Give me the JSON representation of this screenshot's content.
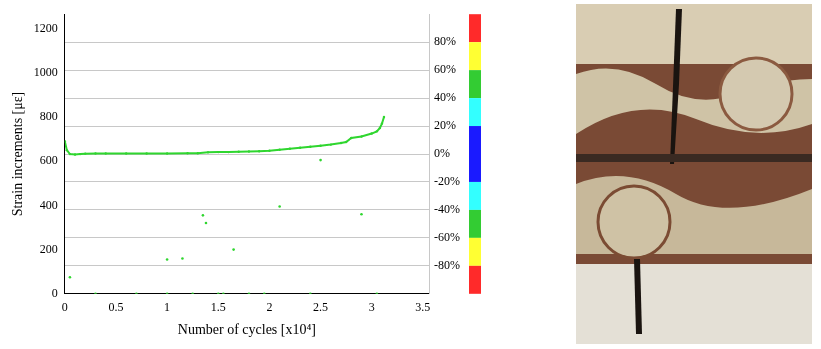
{
  "chart_data": {
    "type": "scatter",
    "x_label": "Number of cycles [x10⁴]",
    "y_label": "Strain increments [με]",
    "xlim": [
      0,
      3.56
    ],
    "xticks": [
      0,
      0.5,
      1,
      1.5,
      2,
      2.5,
      3,
      3.5
    ],
    "ylim": [
      0,
      1265
    ],
    "yticks": [
      0,
      200,
      400,
      600,
      800,
      1000,
      1200
    ],
    "y2lim": [
      -100,
      100
    ],
    "y2ticks": [
      {
        "value": -80,
        "label": "-80%"
      },
      {
        "value": -60,
        "label": "-60%"
      },
      {
        "value": -40,
        "label": "-40%"
      },
      {
        "value": -20,
        "label": "-20%"
      },
      {
        "value": 0,
        "label": "0%"
      },
      {
        "value": 20,
        "label": "20%"
      },
      {
        "value": 40,
        "label": "40%"
      },
      {
        "value": 60,
        "label": "60%"
      },
      {
        "value": 80,
        "label": "80%"
      }
    ],
    "grid": true,
    "series": [
      {
        "color": "#2fd62f",
        "marker": "circle",
        "line_style": "solid",
        "x": [
          0,
          0.02,
          0.05,
          0.1,
          0.15,
          0.2,
          0.3,
          0.4,
          0.6,
          0.8,
          1.0,
          1.2,
          1.3,
          1.4,
          1.5,
          1.6,
          1.7,
          1.8,
          1.9,
          2.0,
          2.1,
          2.2,
          2.3,
          2.4,
          2.5,
          2.6,
          2.7,
          2.75,
          2.8,
          2.9,
          3.0,
          3.05,
          3.08,
          3.1,
          3.12
        ],
        "values": [
          690,
          650,
          632,
          630,
          632,
          634,
          635,
          635,
          635,
          635,
          635,
          636,
          636,
          640,
          641,
          641,
          643,
          644,
          645,
          647,
          652,
          656,
          661,
          665,
          670,
          675,
          682,
          687,
          705,
          712,
          725,
          735,
          750,
          770,
          800
        ]
      },
      {
        "color": "#2fd62f",
        "marker": "circle",
        "x": [
          0.05,
          1.0,
          1.15,
          1.35,
          1.38,
          1.65,
          2.1,
          2.5,
          2.9,
          0.3,
          0.7,
          1.0,
          1.25,
          1.5,
          1.55,
          1.8,
          1.95,
          2.4,
          3.05
        ],
        "values": [
          75,
          155,
          160,
          355,
          320,
          200,
          395,
          605,
          360,
          0,
          0,
          0,
          0,
          0,
          0,
          0,
          0,
          0,
          0
        ]
      }
    ],
    "colorbar": {
      "axis": "y2",
      "bands": [
        {
          "from": 80,
          "to": 100,
          "color": "#ff2a2a"
        },
        {
          "from": 60,
          "to": 80,
          "color": "#ffff33"
        },
        {
          "from": 40,
          "to": 60,
          "color": "#33cc33"
        },
        {
          "from": 20,
          "to": 40,
          "color": "#33ffff"
        },
        {
          "from": -20,
          "to": 20,
          "color": "#1a1aff"
        },
        {
          "from": -40,
          "to": -20,
          "color": "#33ffff"
        },
        {
          "from": -60,
          "to": -40,
          "color": "#33cc33"
        },
        {
          "from": -80,
          "to": -60,
          "color": "#ffff33"
        },
        {
          "from": -100,
          "to": -80,
          "color": "#ff2a2a"
        }
      ]
    }
  }
}
